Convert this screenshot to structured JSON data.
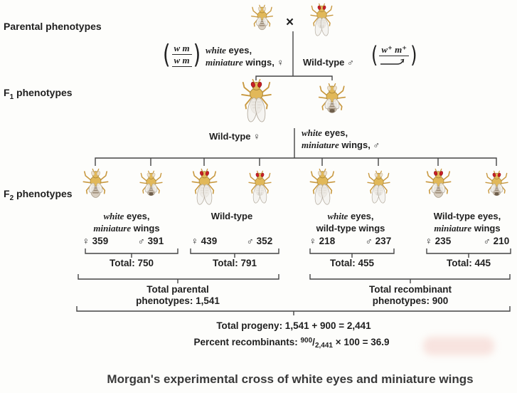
{
  "rows": {
    "parental": {
      "label": "Parental phenotypes"
    },
    "f1": {
      "pre": "F",
      "sub": "1",
      "post": " phenotypes"
    },
    "f2": {
      "pre": "F",
      "sub": "2",
      "post": " phenotypes"
    }
  },
  "parental": {
    "cross": "×",
    "paren_open": "(",
    "paren_close": ")",
    "female": {
      "genotype_top": "w m",
      "genotype_bottom": "w m",
      "line1_gene": "white",
      "line1_rest": " eyes,",
      "line2_gene": "miniature",
      "line2_rest": " wings, ♀"
    },
    "male": {
      "label": "Wild-type ♂",
      "genotype_top": "w⁺ m⁺"
    }
  },
  "f1": {
    "female_label": "Wild-type ♀",
    "male": {
      "line1_gene": "white",
      "line1_rest": " eyes,",
      "line2_gene": "miniature",
      "line2_rest": " wings, ♂"
    }
  },
  "f2": {
    "groups": [
      {
        "line1_gene": "white",
        "line1_rest": " eyes,",
        "line2_gene": "miniature",
        "line2_rest": " wings",
        "female_count": "♀ 359",
        "male_count": "♂ 391",
        "total": "Total: 750"
      },
      {
        "line1_gene": "",
        "line1_rest": "Wild-type",
        "line2_gene": "",
        "line2_rest": "",
        "female_count": "♀ 439",
        "male_count": "♂ 352",
        "total": "Total: 791"
      },
      {
        "line1_gene": "white",
        "line1_rest": " eyes,",
        "line2_gene": "",
        "line2_rest": "wild-type wings",
        "female_count": "♀ 218",
        "male_count": "♂ 237",
        "total": "Total: 455"
      },
      {
        "line1_gene": "",
        "line1_rest": "Wild-type eyes,",
        "line2_gene": "miniature",
        "line2_rest": " wings",
        "female_count": "♀ 235",
        "male_count": "♂ 210",
        "total": "Total: 445"
      }
    ]
  },
  "summary": {
    "parental_line1": "Total parental",
    "parental_line2": "phenotypes: 1,541",
    "recombinant_line1": "Total recombinant",
    "recombinant_line2": "phenotypes: 900",
    "progeny": "Total progeny: 1,541 + 900 = 2,441",
    "percent_prefix": "Percent recombinants: ",
    "percent_num": "900",
    "percent_slash": "/",
    "percent_den": "2,441",
    "percent_suffix": " × 100 = 36.9"
  },
  "caption": "Morgan's experimental cross of white eyes and miniature wings",
  "flies": {
    "parental": [
      {
        "eyes": "white",
        "wings": "miniature",
        "sex": "female"
      },
      {
        "eyes": "red",
        "wings": "long",
        "sex": "male"
      }
    ],
    "f1": [
      {
        "eyes": "red",
        "wings": "long",
        "sex": "female"
      },
      {
        "eyes": "white",
        "wings": "miniature",
        "sex": "male"
      }
    ],
    "f2": [
      {
        "eyes": "white",
        "wings": "miniature",
        "sex": "female"
      },
      {
        "eyes": "white",
        "wings": "miniature",
        "sex": "male"
      },
      {
        "eyes": "red",
        "wings": "long",
        "sex": "female"
      },
      {
        "eyes": "red",
        "wings": "long",
        "sex": "male"
      },
      {
        "eyes": "white",
        "wings": "long",
        "sex": "female"
      },
      {
        "eyes": "white",
        "wings": "long",
        "sex": "male"
      },
      {
        "eyes": "red",
        "wings": "miniature",
        "sex": "female"
      },
      {
        "eyes": "red",
        "wings": "miniature",
        "sex": "male"
      }
    ]
  },
  "colors": {
    "red_eye": "#c81e25",
    "white_eye": "#ecdfc8",
    "body_gold": "#e1b859",
    "line": "#454545",
    "text": "#1f1f1f"
  }
}
